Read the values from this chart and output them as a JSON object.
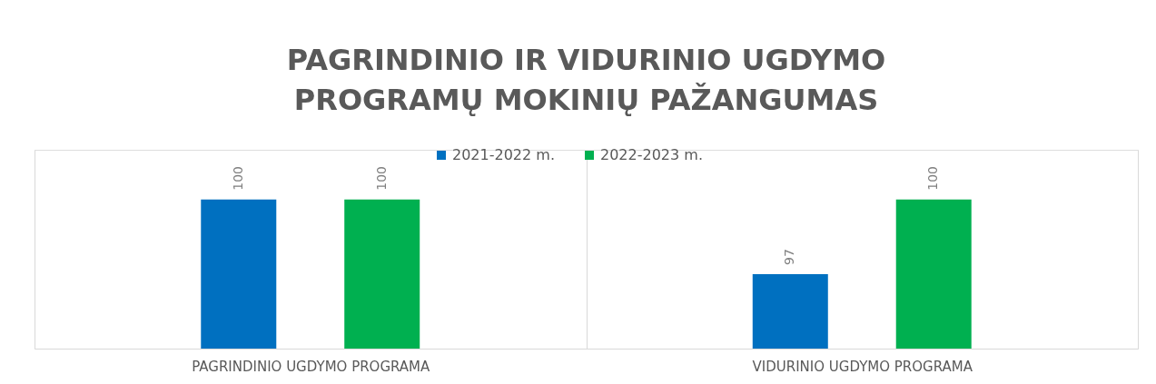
{
  "chart_data": {
    "type": "bar",
    "title": "PAGRINDINIO IR VIDURINIO UGDYMO\nPROGRAMŲ MOKINIŲ PAŽANGUMAS",
    "categories": [
      "PAGRINDINIO UGDYMO PROGRAMA",
      "VIDURINIO UGDYMO PROGRAMA"
    ],
    "series": [
      {
        "name": "2021-2022 m.",
        "color": "#0070c0",
        "values": [
          100,
          97
        ]
      },
      {
        "name": "2022-2023 m.",
        "color": "#00b050",
        "values": [
          100,
          100
        ]
      }
    ],
    "ylim": [
      94,
      102
    ],
    "tick_labels": "x",
    "data_labels": true,
    "grid": "x",
    "legend": "top"
  }
}
